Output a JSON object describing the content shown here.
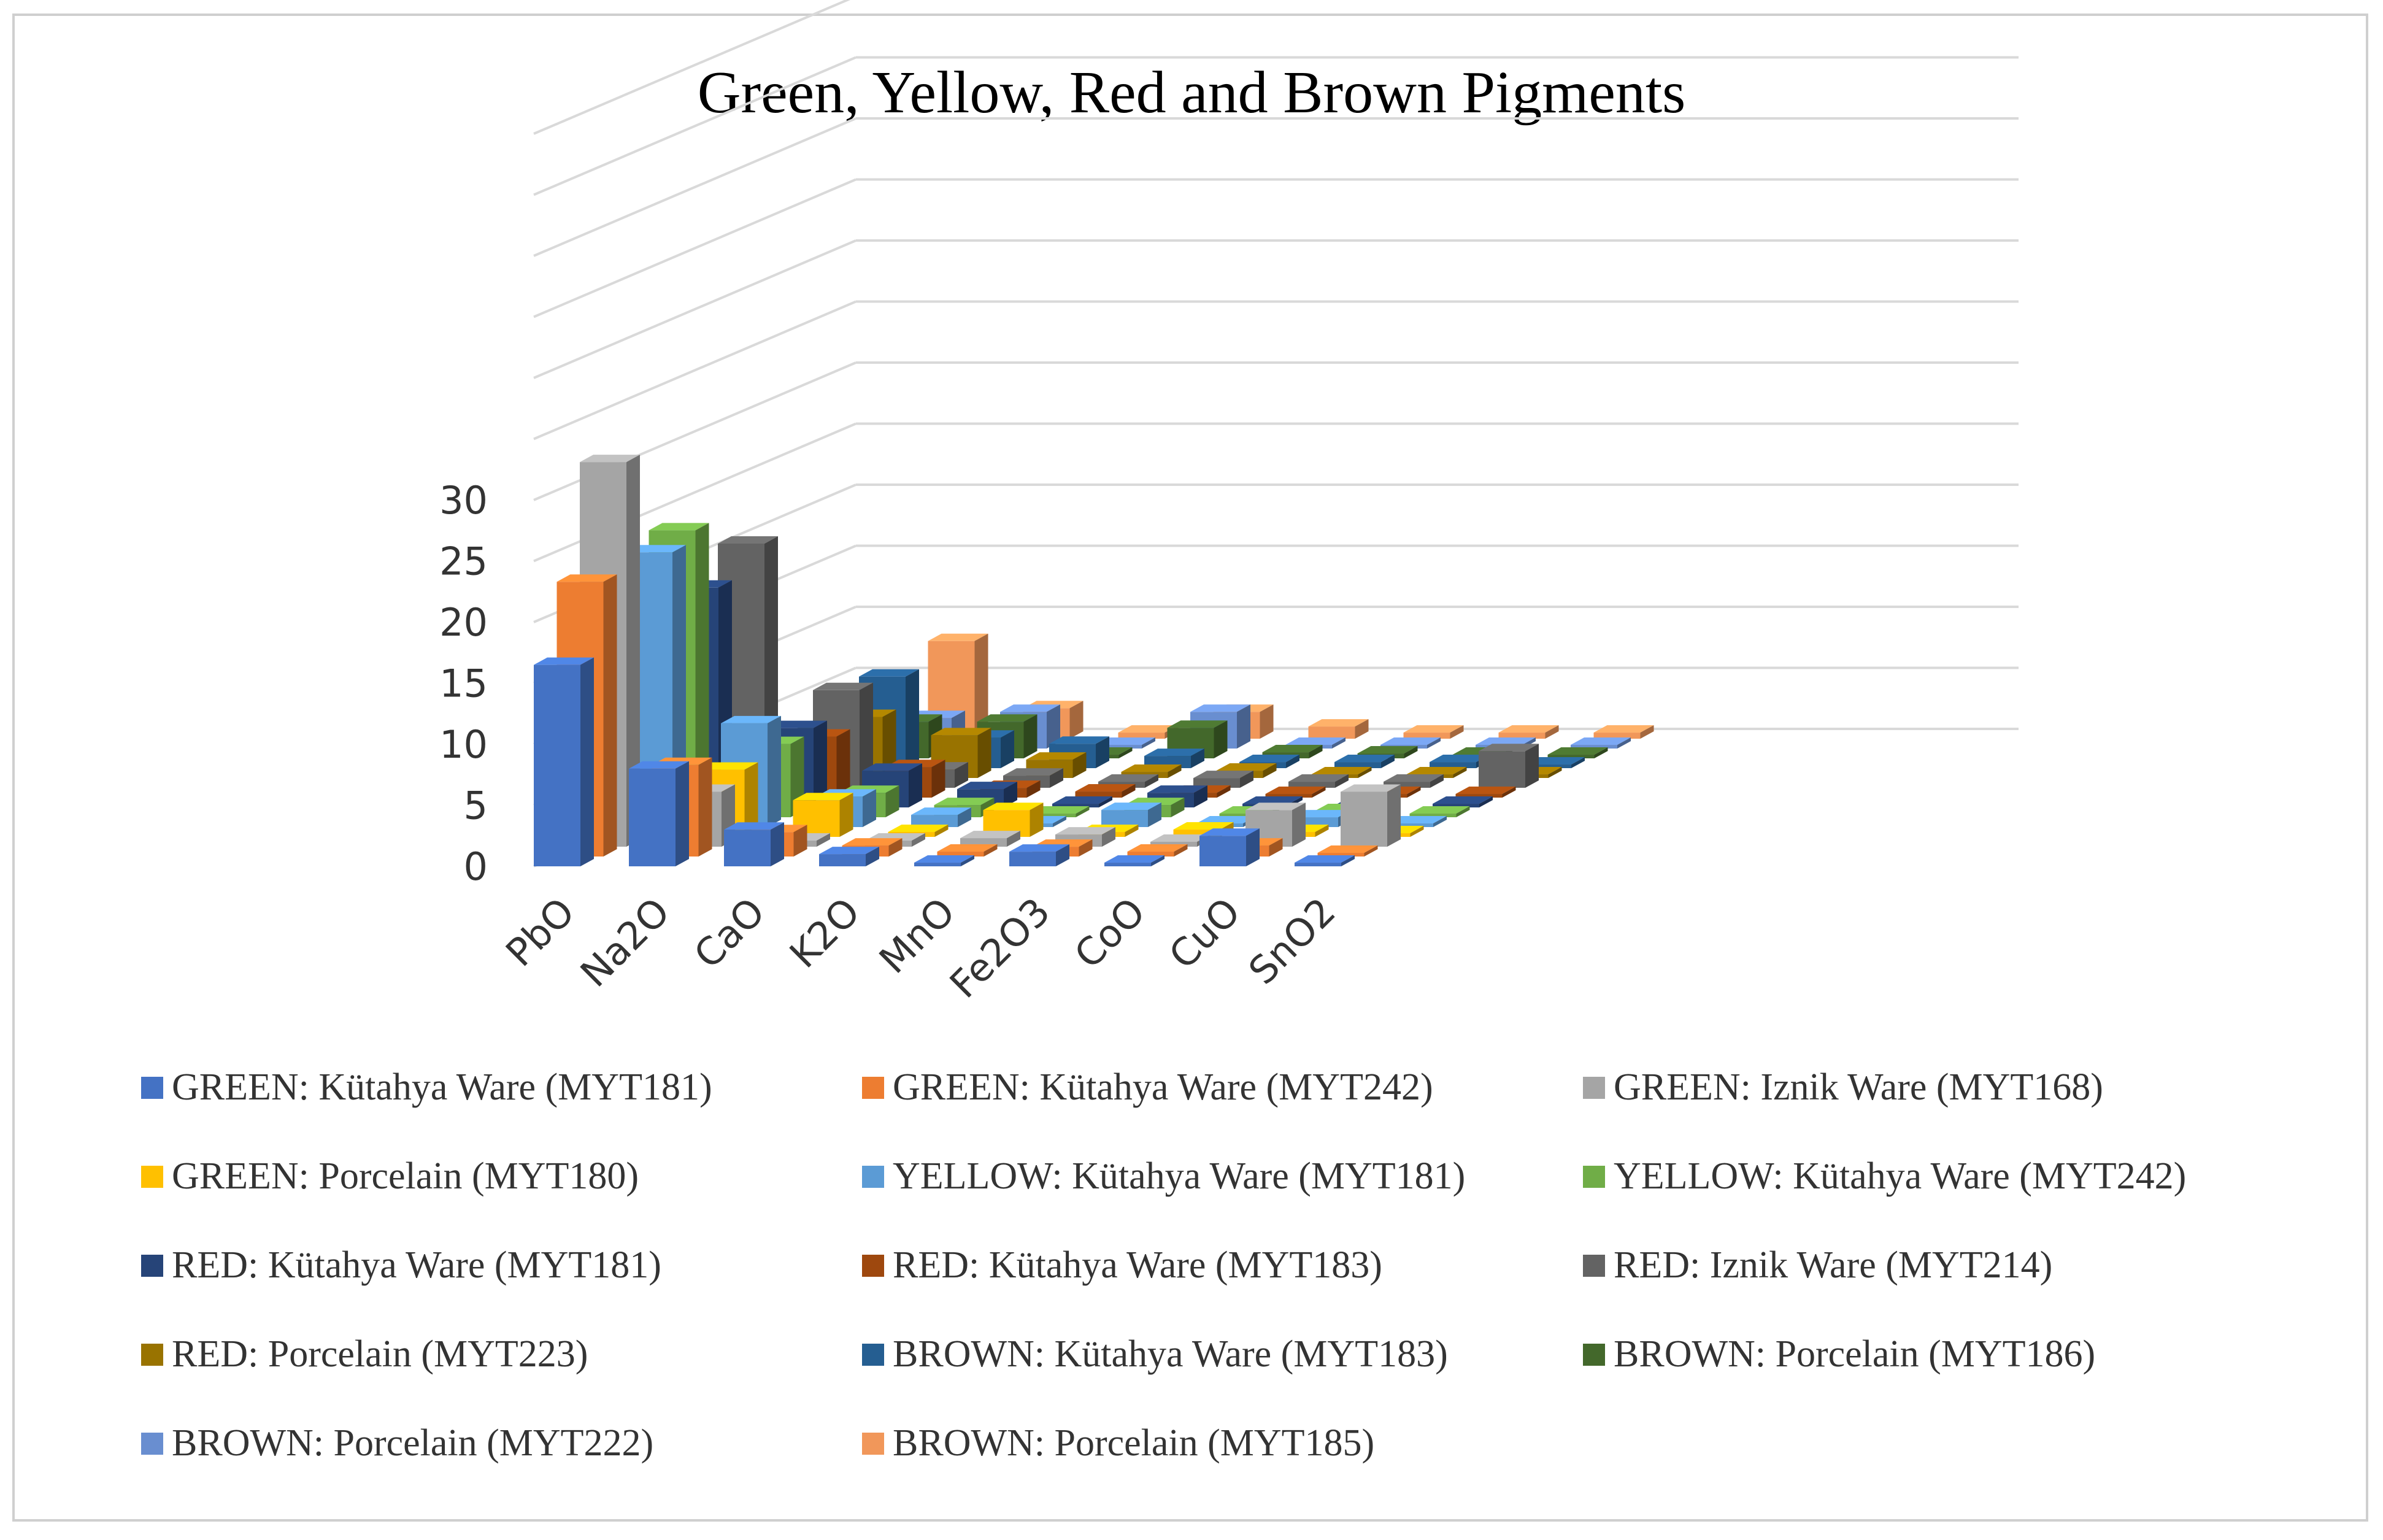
{
  "chart_data": {
    "type": "bar",
    "subtype": "3d-column",
    "title": "Green, Yellow, Red and Brown Pigments",
    "xlabel": "",
    "ylabel": "",
    "ylim": [
      0,
      30
    ],
    "yticks": [
      0,
      5,
      10,
      15,
      20,
      25,
      30
    ],
    "grid": true,
    "legend_position": "bottom",
    "categories": [
      "PbO",
      "Na2O",
      "CaO",
      "K2O",
      "MnO",
      "Fe2O3",
      "CoO",
      "CuO",
      "SnO2"
    ],
    "series": [
      {
        "name": "GREEN: Kütahya Ware (MYT181)",
        "color": "#4472C4",
        "values": [
          16.5,
          8,
          3,
          1,
          0.3,
          1.2,
          0.3,
          2.5,
          0.3
        ]
      },
      {
        "name": "GREEN: Kütahya Ware (MYT242)",
        "color": "#ED7D31",
        "values": [
          22.5,
          7.5,
          2,
          0.9,
          0.4,
          0.8,
          0.4,
          0.9,
          0.3
        ]
      },
      {
        "name": "GREEN: Iznik Ware (MYT168)",
        "color": "#A5A5A5",
        "values": [
          31.5,
          4.5,
          0.5,
          0.5,
          0.7,
          1.0,
          0.4,
          3,
          4.5
        ]
      },
      {
        "name": "GREEN: Porcelain (MYT180)",
        "color": "#FFC000",
        "values": [
          1.2,
          5.5,
          3,
          0.4,
          2.2,
          0.4,
          0.6,
          0.4,
          0.3
        ]
      },
      {
        "name": "YELLOW: Kütahya Ware (MYT181)",
        "color": "#5B9BD5",
        "values": [
          22.5,
          8.5,
          2.5,
          1,
          0.3,
          1.4,
          0.3,
          0.8,
          0.3
        ]
      },
      {
        "name": "YELLOW: Kütahya Ware (MYT242)",
        "color": "#70AD47",
        "values": [
          23.5,
          6,
          2,
          1,
          0.3,
          1,
          0.3,
          0.5,
          0.3
        ]
      },
      {
        "name": "RED: Kütahya Ware (MYT181)",
        "color": "#264478",
        "values": [
          18,
          6.5,
          3,
          1.5,
          0.3,
          1.2,
          0.3,
          0.3,
          0.3
        ]
      },
      {
        "name": "RED: Kütahya Ware (MYT183)",
        "color": "#9E480E",
        "values": [
          1.5,
          5,
          2.5,
          0.8,
          0.5,
          0.4,
          0.3,
          0.3,
          0.3
        ]
      },
      {
        "name": "RED: Iznik Ware (MYT214)",
        "color": "#636363",
        "values": [
          20,
          8,
          1.5,
          1,
          0.5,
          0.8,
          0.5,
          0.5,
          3
        ]
      },
      {
        "name": "RED: Porcelain (MYT223)",
        "color": "#997300",
        "values": [
          1,
          5,
          3.5,
          1.5,
          0.5,
          0.6,
          0.3,
          0.3,
          0.3
        ]
      },
      {
        "name": "BROWN: Kütahya Ware (MYT183)",
        "color": "#255E91",
        "values": [
          2,
          7.5,
          2.5,
          2,
          1,
          0.5,
          0.5,
          0.5,
          0.3
        ]
      },
      {
        "name": "BROWN: Porcelain (MYT186)",
        "color": "#43682B",
        "values": [
          2,
          3,
          3,
          0.3,
          2.5,
          0.5,
          0.4,
          0.3,
          0.3
        ]
      },
      {
        "name": "BROWN: Porcelain (MYT222)",
        "color": "#698ED0",
        "values": [
          1,
          2.5,
          3,
          0.3,
          3,
          0.3,
          0.3,
          0.3,
          0.3
        ]
      },
      {
        "name": "BROWN: Porcelain (MYT185)",
        "color": "#F1975A",
        "values": [
          0.5,
          8,
          2.5,
          0.5,
          2.2,
          1,
          0.5,
          0.5,
          0.5
        ]
      }
    ]
  }
}
